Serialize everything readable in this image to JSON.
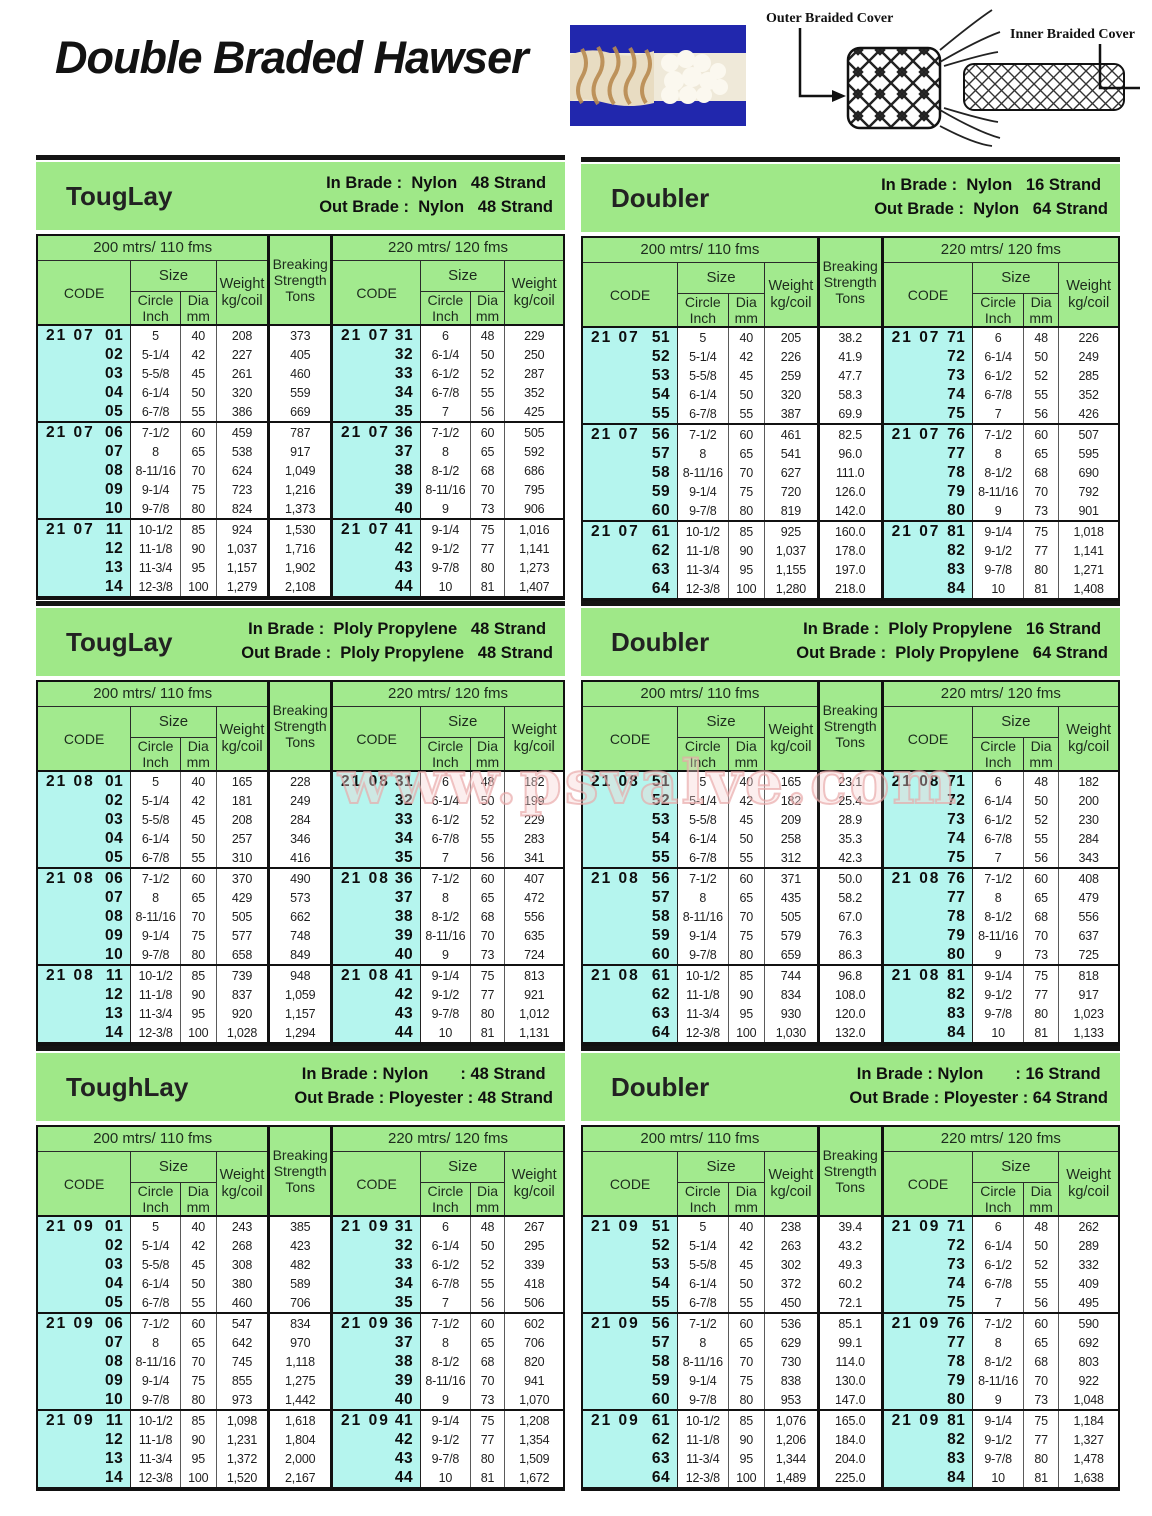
{
  "page": {
    "title": "Double Braded Hawser",
    "watermark": "www.psvalve.com"
  },
  "diagram": {
    "outer_label": "Outer Braided Cover",
    "inner_label": "Inner Braided Cover"
  },
  "table_headers": {
    "len200": "200 mtrs/ 110 fms",
    "len220": "220 mtrs/ 120 fms",
    "code": "CODE",
    "size": "Size",
    "circle": "Circle\nInch",
    "dia": "Dia\nmm",
    "weight": "Weight\nkg/coil",
    "breaking": "Breaking\nStrength\nTons"
  },
  "tables": [
    {
      "name": "TougLay",
      "in_brade": "In Brade :  Nylon   48 Strand",
      "out_brade": "Out Brade :  Nylon   48 Strand",
      "rows": [
        [
          "21 07",
          "01",
          "5",
          "40",
          "208",
          "373",
          "21 07",
          "31",
          "6",
          "48",
          "229"
        ],
        [
          "",
          "02",
          "5-1/4",
          "42",
          "227",
          "405",
          "",
          "32",
          "6-1/4",
          "50",
          "250"
        ],
        [
          "",
          "03",
          "5-5/8",
          "45",
          "261",
          "460",
          "",
          "33",
          "6-1/2",
          "52",
          "287"
        ],
        [
          "",
          "04",
          "6-1/4",
          "50",
          "320",
          "559",
          "",
          "34",
          "6-7/8",
          "55",
          "352"
        ],
        [
          "",
          "05",
          "6-7/8",
          "55",
          "386",
          "669",
          "",
          "35",
          "7",
          "56",
          "425"
        ],
        [
          "21 07",
          "06",
          "7-1/2",
          "60",
          "459",
          "787",
          "21 07",
          "36",
          "7-1/2",
          "60",
          "505"
        ],
        [
          "",
          "07",
          "8",
          "65",
          "538",
          "917",
          "",
          "37",
          "8",
          "65",
          "592"
        ],
        [
          "",
          "08",
          "8-11/16",
          "70",
          "624",
          "1,049",
          "",
          "38",
          "8-1/2",
          "68",
          "686"
        ],
        [
          "",
          "09",
          "9-1/4",
          "75",
          "723",
          "1,216",
          "",
          "39",
          "8-11/16",
          "70",
          "795"
        ],
        [
          "",
          "10",
          "9-7/8",
          "80",
          "824",
          "1,373",
          "",
          "40",
          "9",
          "73",
          "906"
        ],
        [
          "21 07",
          "11",
          "10-1/2",
          "85",
          "924",
          "1,530",
          "21 07",
          "41",
          "9-1/4",
          "75",
          "1,016"
        ],
        [
          "",
          "12",
          "11-1/8",
          "90",
          "1,037",
          "1,716",
          "",
          "42",
          "9-1/2",
          "77",
          "1,141"
        ],
        [
          "",
          "13",
          "11-3/4",
          "95",
          "1,157",
          "1,902",
          "",
          "43",
          "9-7/8",
          "80",
          "1,273"
        ],
        [
          "",
          "14",
          "12-3/8",
          "100",
          "1,279",
          "2,108",
          "",
          "44",
          "10",
          "81",
          "1,407"
        ]
      ]
    },
    {
      "name": "Doubler",
      "in_brade": "In Brade :  Nylon   16 Strand",
      "out_brade": "Out Brade :  Nylon   64 Strand",
      "rows": [
        [
          "21 07",
          "51",
          "5",
          "40",
          "205",
          "38.2",
          "21 07",
          "71",
          "6",
          "48",
          "226"
        ],
        [
          "",
          "52",
          "5-1/4",
          "42",
          "226",
          "41.9",
          "",
          "72",
          "6-1/4",
          "50",
          "249"
        ],
        [
          "",
          "53",
          "5-5/8",
          "45",
          "259",
          "47.7",
          "",
          "73",
          "6-1/2",
          "52",
          "285"
        ],
        [
          "",
          "54",
          "6-1/4",
          "50",
          "320",
          "58.3",
          "",
          "74",
          "6-7/8",
          "55",
          "352"
        ],
        [
          "",
          "55",
          "6-7/8",
          "55",
          "387",
          "69.9",
          "",
          "75",
          "7",
          "56",
          "426"
        ],
        [
          "21 07",
          "56",
          "7-1/2",
          "60",
          "461",
          "82.5",
          "21 07",
          "76",
          "7-1/2",
          "60",
          "507"
        ],
        [
          "",
          "57",
          "8",
          "65",
          "541",
          "96.0",
          "",
          "77",
          "8",
          "65",
          "595"
        ],
        [
          "",
          "58",
          "8-11/16",
          "70",
          "627",
          "111.0",
          "",
          "78",
          "8-1/2",
          "68",
          "690"
        ],
        [
          "",
          "59",
          "9-1/4",
          "75",
          "720",
          "126.0",
          "",
          "79",
          "8-11/16",
          "70",
          "792"
        ],
        [
          "",
          "60",
          "9-7/8",
          "80",
          "819",
          "142.0",
          "",
          "80",
          "9",
          "73",
          "901"
        ],
        [
          "21 07",
          "61",
          "10-1/2",
          "85",
          "925",
          "160.0",
          "21 07",
          "81",
          "9-1/4",
          "75",
          "1,018"
        ],
        [
          "",
          "62",
          "11-1/8",
          "90",
          "1,037",
          "178.0",
          "",
          "82",
          "9-1/2",
          "77",
          "1,141"
        ],
        [
          "",
          "63",
          "11-3/4",
          "95",
          "1,155",
          "197.0",
          "",
          "83",
          "9-7/8",
          "80",
          "1,271"
        ],
        [
          "",
          "64",
          "12-3/8",
          "100",
          "1,280",
          "218.0",
          "",
          "84",
          "10",
          "81",
          "1,408"
        ]
      ]
    },
    {
      "name": "TougLay",
      "in_brade": "In Brade :  Ploly Propylene   48 Strand",
      "out_brade": "Out Brade :  Ploly Propylene   48 Strand",
      "rows": [
        [
          "21 08",
          "01",
          "5",
          "40",
          "165",
          "228",
          "21 08",
          "31",
          "6",
          "48",
          "182"
        ],
        [
          "",
          "02",
          "5-1/4",
          "42",
          "181",
          "249",
          "",
          "32",
          "6-1/4",
          "50",
          "199"
        ],
        [
          "",
          "03",
          "5-5/8",
          "45",
          "208",
          "284",
          "",
          "33",
          "6-1/2",
          "52",
          "229"
        ],
        [
          "",
          "04",
          "6-1/4",
          "50",
          "257",
          "346",
          "",
          "34",
          "6-7/8",
          "55",
          "283"
        ],
        [
          "",
          "05",
          "6-7/8",
          "55",
          "310",
          "416",
          "",
          "35",
          "7",
          "56",
          "341"
        ],
        [
          "21 08",
          "06",
          "7-1/2",
          "60",
          "370",
          "490",
          "21 08",
          "36",
          "7-1/2",
          "60",
          "407"
        ],
        [
          "",
          "07",
          "8",
          "65",
          "429",
          "573",
          "",
          "37",
          "8",
          "65",
          "472"
        ],
        [
          "",
          "08",
          "8-11/16",
          "70",
          "505",
          "662",
          "",
          "38",
          "8-1/2",
          "68",
          "556"
        ],
        [
          "",
          "09",
          "9-1/4",
          "75",
          "577",
          "748",
          "",
          "39",
          "8-11/16",
          "70",
          "635"
        ],
        [
          "",
          "10",
          "9-7/8",
          "80",
          "658",
          "849",
          "",
          "40",
          "9",
          "73",
          "724"
        ],
        [
          "21 08",
          "11",
          "10-1/2",
          "85",
          "739",
          "948",
          "21 08",
          "41",
          "9-1/4",
          "75",
          "813"
        ],
        [
          "",
          "12",
          "11-1/8",
          "90",
          "837",
          "1,059",
          "",
          "42",
          "9-1/2",
          "77",
          "921"
        ],
        [
          "",
          "13",
          "11-3/4",
          "95",
          "920",
          "1,157",
          "",
          "43",
          "9-7/8",
          "80",
          "1,012"
        ],
        [
          "",
          "14",
          "12-3/8",
          "100",
          "1,028",
          "1,294",
          "",
          "44",
          "10",
          "81",
          "1,131"
        ]
      ]
    },
    {
      "name": "Doubler",
      "in_brade": "In Brade :  Ploly Propylene   16 Strand",
      "out_brade": "Out Brade :  Ploly Propylene   64 Strand",
      "rows": [
        [
          "21 08",
          "51",
          "5",
          "40",
          "165",
          "23.1",
          "21 08",
          "71",
          "6",
          "48",
          "182"
        ],
        [
          "",
          "52",
          "5-1/4",
          "42",
          "182",
          "25.4",
          "",
          "72",
          "6-1/4",
          "50",
          "200"
        ],
        [
          "",
          "53",
          "5-5/8",
          "45",
          "209",
          "28.9",
          "",
          "73",
          "6-1/2",
          "52",
          "230"
        ],
        [
          "",
          "54",
          "6-1/4",
          "50",
          "258",
          "35.3",
          "",
          "74",
          "6-7/8",
          "55",
          "284"
        ],
        [
          "",
          "55",
          "6-7/8",
          "55",
          "312",
          "42.3",
          "",
          "75",
          "7",
          "56",
          "343"
        ],
        [
          "21 08",
          "56",
          "7-1/2",
          "60",
          "371",
          "50.0",
          "21 08",
          "76",
          "7-1/2",
          "60",
          "408"
        ],
        [
          "",
          "57",
          "8",
          "65",
          "435",
          "58.2",
          "",
          "77",
          "8",
          "65",
          "479"
        ],
        [
          "",
          "58",
          "8-11/16",
          "70",
          "505",
          "67.0",
          "",
          "78",
          "8-1/2",
          "68",
          "556"
        ],
        [
          "",
          "59",
          "9-1/4",
          "75",
          "579",
          "76.3",
          "",
          "79",
          "8-11/16",
          "70",
          "637"
        ],
        [
          "",
          "60",
          "9-7/8",
          "80",
          "659",
          "86.3",
          "",
          "80",
          "9",
          "73",
          "725"
        ],
        [
          "21 08",
          "61",
          "10-1/2",
          "85",
          "744",
          "96.8",
          "21 08",
          "81",
          "9-1/4",
          "75",
          "818"
        ],
        [
          "",
          "62",
          "11-1/8",
          "90",
          "834",
          "108.0",
          "",
          "82",
          "9-1/2",
          "77",
          "917"
        ],
        [
          "",
          "63",
          "11-3/4",
          "95",
          "930",
          "120.0",
          "",
          "83",
          "9-7/8",
          "80",
          "1,023"
        ],
        [
          "",
          "64",
          "12-3/8",
          "100",
          "1,030",
          "132.0",
          "",
          "84",
          "10",
          "81",
          "1,133"
        ]
      ]
    },
    {
      "name": "ToughLay",
      "in_brade": "In Brade : Nylon       : 48 Strand",
      "out_brade": "Out Brade : Ployester : 48 Strand",
      "rows": [
        [
          "21 09",
          "01",
          "5",
          "40",
          "243",
          "385",
          "21 09",
          "31",
          "6",
          "48",
          "267"
        ],
        [
          "",
          "02",
          "5-1/4",
          "42",
          "268",
          "423",
          "",
          "32",
          "6-1/4",
          "50",
          "295"
        ],
        [
          "",
          "03",
          "5-5/8",
          "45",
          "308",
          "482",
          "",
          "33",
          "6-1/2",
          "52",
          "339"
        ],
        [
          "",
          "04",
          "6-1/4",
          "50",
          "380",
          "589",
          "",
          "34",
          "6-7/8",
          "55",
          "418"
        ],
        [
          "",
          "05",
          "6-7/8",
          "55",
          "460",
          "706",
          "",
          "35",
          "7",
          "56",
          "506"
        ],
        [
          "21 09",
          "06",
          "7-1/2",
          "60",
          "547",
          "834",
          "21 09",
          "36",
          "7-1/2",
          "60",
          "602"
        ],
        [
          "",
          "07",
          "8",
          "65",
          "642",
          "970",
          "",
          "37",
          "8",
          "65",
          "706"
        ],
        [
          "",
          "08",
          "8-11/16",
          "70",
          "745",
          "1,118",
          "",
          "38",
          "8-1/2",
          "68",
          "820"
        ],
        [
          "",
          "09",
          "9-1/4",
          "75",
          "855",
          "1,275",
          "",
          "39",
          "8-11/16",
          "70",
          "941"
        ],
        [
          "",
          "10",
          "9-7/8",
          "80",
          "973",
          "1,442",
          "",
          "40",
          "9",
          "73",
          "1,070"
        ],
        [
          "21 09",
          "11",
          "10-1/2",
          "85",
          "1,098",
          "1,618",
          "21 09",
          "41",
          "9-1/4",
          "75",
          "1,208"
        ],
        [
          "",
          "12",
          "11-1/8",
          "90",
          "1,231",
          "1,804",
          "",
          "42",
          "9-1/2",
          "77",
          "1,354"
        ],
        [
          "",
          "13",
          "11-3/4",
          "95",
          "1,372",
          "2,000",
          "",
          "43",
          "9-7/8",
          "80",
          "1,509"
        ],
        [
          "",
          "14",
          "12-3/8",
          "100",
          "1,520",
          "2,167",
          "",
          "44",
          "10",
          "81",
          "1,672"
        ]
      ]
    },
    {
      "name": "Doubler",
      "in_brade": "In Brade : Nylon       : 16 Strand",
      "out_brade": "Out Brade : Ployester : 64 Strand",
      "rows": [
        [
          "21 09",
          "51",
          "5",
          "40",
          "238",
          "39.4",
          "21 09",
          "71",
          "6",
          "48",
          "262"
        ],
        [
          "",
          "52",
          "5-1/4",
          "42",
          "263",
          "43.2",
          "",
          "72",
          "6-1/4",
          "50",
          "289"
        ],
        [
          "",
          "53",
          "5-5/8",
          "45",
          "302",
          "49.3",
          "",
          "73",
          "6-1/2",
          "52",
          "332"
        ],
        [
          "",
          "54",
          "6-1/4",
          "50",
          "372",
          "60.2",
          "",
          "74",
          "6-7/8",
          "55",
          "409"
        ],
        [
          "",
          "55",
          "6-7/8",
          "55",
          "450",
          "72.1",
          "",
          "75",
          "7",
          "56",
          "495"
        ],
        [
          "21 09",
          "56",
          "7-1/2",
          "60",
          "536",
          "85.1",
          "21 09",
          "76",
          "7-1/2",
          "60",
          "590"
        ],
        [
          "",
          "57",
          "8",
          "65",
          "629",
          "99.1",
          "",
          "77",
          "8",
          "65",
          "692"
        ],
        [
          "",
          "58",
          "8-11/16",
          "70",
          "730",
          "114.0",
          "",
          "78",
          "8-1/2",
          "68",
          "803"
        ],
        [
          "",
          "59",
          "9-1/4",
          "75",
          "838",
          "130.0",
          "",
          "79",
          "8-11/16",
          "70",
          "922"
        ],
        [
          "",
          "60",
          "9-7/8",
          "80",
          "953",
          "147.0",
          "",
          "80",
          "9",
          "73",
          "1,048"
        ],
        [
          "21 09",
          "61",
          "10-1/2",
          "85",
          "1,076",
          "165.0",
          "21 09",
          "81",
          "9-1/4",
          "75",
          "1,184"
        ],
        [
          "",
          "62",
          "11-1/8",
          "90",
          "1,206",
          "184.0",
          "",
          "82",
          "9-1/2",
          "77",
          "1,327"
        ],
        [
          "",
          "63",
          "11-3/4",
          "95",
          "1,344",
          "204.0",
          "",
          "83",
          "9-7/8",
          "80",
          "1,478"
        ],
        [
          "",
          "64",
          "12-3/8",
          "100",
          "1,489",
          "225.0",
          "",
          "84",
          "10",
          "81",
          "1,638"
        ]
      ]
    }
  ]
}
